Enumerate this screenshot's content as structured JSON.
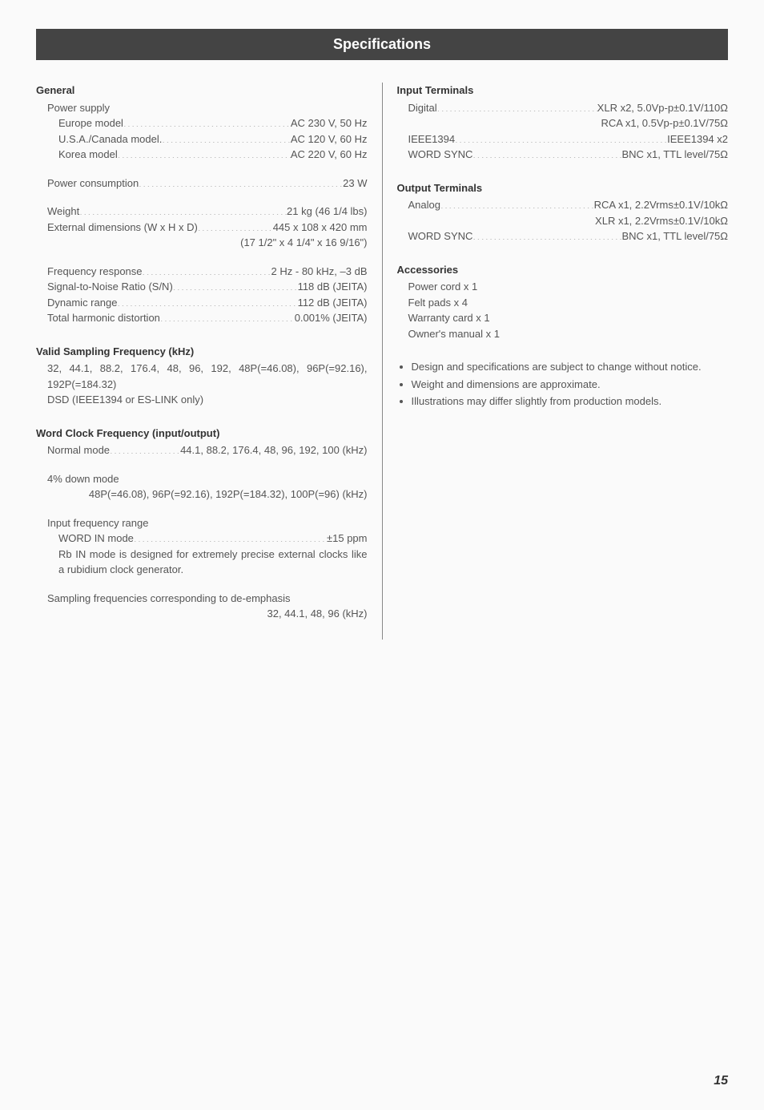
{
  "title": "Specifications",
  "page_number": "15",
  "left": {
    "general": {
      "heading": "General",
      "power_supply_label": "Power supply",
      "rows": [
        {
          "label": "Europe model",
          "value": "AC 230 V, 50 Hz"
        },
        {
          "label": "U.S.A./Canada model.",
          "value": "AC 120 V, 60 Hz"
        },
        {
          "label": "Korea model",
          "value": "AC 220 V, 60 Hz"
        }
      ],
      "power_consumption": {
        "label": "Power consumption",
        "value": "23 W"
      },
      "weight": {
        "label": "Weight",
        "value": "21 kg (46 1/4 lbs)"
      },
      "dimensions": {
        "label": "External dimensions (W x H x D)",
        "value": "445 x 108 x 420 mm"
      },
      "dimensions_inches": "(17 1/2\" x 4 1/4\" x 16 9/16\")",
      "perf": [
        {
          "label": "Frequency response",
          "value": "2 Hz - 80 kHz, –3 dB"
        },
        {
          "label": "Signal-to-Noise Ratio (S/N)",
          "value": "118 dB (JEITA)"
        },
        {
          "label": "Dynamic range",
          "value": "112 dB (JEITA)"
        },
        {
          "label": "Total harmonic distortion",
          "value": "0.001% (JEITA)"
        }
      ]
    },
    "sampling": {
      "heading": "Valid Sampling Frequency (kHz)",
      "line1": "32, 44.1, 88.2, 176.4, 48, 96, 192, 48P(=46.08), 96P(=92.16), 192P(=184.32)",
      "line2": "DSD (IEEE1394 or ES-LINK only)"
    },
    "wordclock": {
      "heading": "Word Clock Frequency (input/output)",
      "normal": {
        "label": "Normal mode",
        "value": "44.1, 88.2, 176.4, 48, 96, 192, 100 (kHz)"
      },
      "down_label": "4% down mode",
      "down_value": "48P(=46.08), 96P(=92.16), 192P(=184.32), 100P(=96) (kHz)",
      "input_range_label": "Input frequency range",
      "word_in": {
        "label": "WORD IN mode",
        "value": "±15 ppm"
      },
      "rb_note": "Rb IN mode is designed for extremely precise external clocks like a rubidium clock generator.",
      "deemph_label": "Sampling frequencies corresponding to de-emphasis",
      "deemph_value": "32, 44.1, 48, 96 (kHz)"
    }
  },
  "right": {
    "input": {
      "heading": "Input Terminals",
      "digital": {
        "label": "Digital",
        "value": "XLR x2, 5.0Vp-p±0.1V/110Ω"
      },
      "digital2": "RCA x1, 0.5Vp-p±0.1V/75Ω",
      "ieee": {
        "label": "IEEE1394",
        "value": "IEEE1394 x2"
      },
      "wordsync": {
        "label": "WORD SYNC",
        "value": "BNC x1, TTL level/75Ω"
      }
    },
    "output": {
      "heading": "Output Terminals",
      "analog": {
        "label": "Analog",
        "value": "RCA x1, 2.2Vrms±0.1V/10kΩ"
      },
      "analog2": "XLR x1, 2.2Vrms±0.1V/10kΩ",
      "wordsync": {
        "label": "WORD SYNC",
        "value": "BNC x1, TTL level/75Ω"
      }
    },
    "accessories": {
      "heading": "Accessories",
      "items": [
        "Power cord x 1",
        "Felt pads x 4",
        "Warranty card x 1",
        "Owner's manual x 1"
      ]
    },
    "notes": [
      "Design and specifications are subject to change without notice.",
      "Weight and dimensions are approximate.",
      "Illustrations may differ slightly from production models."
    ]
  }
}
